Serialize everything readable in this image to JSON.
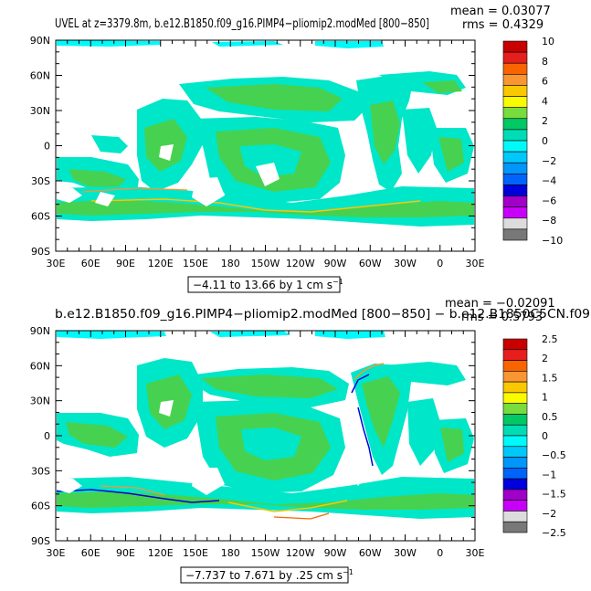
{
  "panels": [
    {
      "title": "UVEL at z=3379.8m, b.e12.B1850.f09_g16.PIMP4−pliomip2.modMed  [800−850]",
      "stats": {
        "mean": "mean = 0.03077",
        "rms": "rms = 0.4329"
      },
      "contour_info": "−4.11 to 13.66 by 1 cm s",
      "contour_exp": "−1",
      "colorbar": {
        "labels": [
          "10",
          "8",
          "6",
          "4",
          "2",
          "0",
          "−2",
          "−4",
          "−6",
          "−8",
          "−10"
        ],
        "colors": [
          "#c80000",
          "#e61e1e",
          "#fa6400",
          "#fa9632",
          "#fac800",
          "#fafa00",
          "#78dc3c",
          "#00c864",
          "#00dcb4",
          "#00fafa",
          "#00c8fa",
          "#0096fa",
          "#0064fa",
          "#0000dc",
          "#a000c8",
          "#c800fa",
          "#dcdcdc",
          "#787878"
        ]
      }
    },
    {
      "title": "b.e12.B1850.f09_g16.PIMP4−pliomip2.modMed  [800−850]  − b.e12.B1850C5CN.f09",
      "stats": {
        "mean": "mean = −0.02091",
        "rms": "rms = 0.5793"
      },
      "contour_info": "−7.737 to 7.671 by .25 cm s",
      "contour_exp": "−1",
      "colorbar": {
        "labels": [
          "2.5",
          "2",
          "1.5",
          "1",
          "0.5",
          "0",
          "−0.5",
          "−1",
          "−1.5",
          "−2",
          "−2.5"
        ],
        "colors": [
          "#c80000",
          "#e61e1e",
          "#fa6400",
          "#fa9632",
          "#fac800",
          "#fafa00",
          "#78dc3c",
          "#00c864",
          "#00dcb4",
          "#00fafa",
          "#00c8fa",
          "#0096fa",
          "#0064fa",
          "#0000dc",
          "#a000c8",
          "#c800fa",
          "#dcdcdc",
          "#787878"
        ]
      }
    }
  ],
  "lat_labels": [
    "90N",
    "60N",
    "30N",
    "0",
    "30S",
    "60S",
    "90S"
  ],
  "lon_labels": [
    "30E",
    "60E",
    "90E",
    "120E",
    "150E",
    "180",
    "150W",
    "120W",
    "90W",
    "60W",
    "30W",
    "0",
    "30E"
  ]
}
